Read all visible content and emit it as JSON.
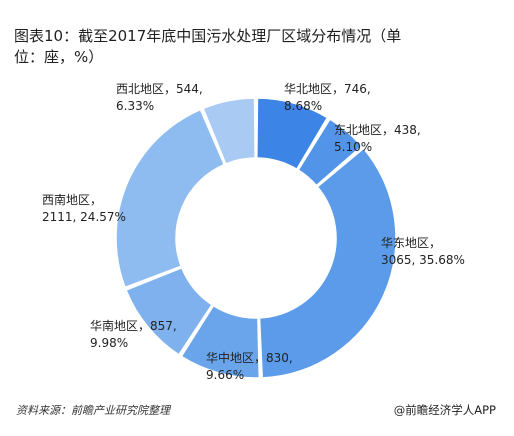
{
  "title": {
    "line1": "图表10：截至2017年底中国污水处理厂区域分布情况（单",
    "line2": "位：座，%）"
  },
  "chart_data": {
    "type": "pie",
    "donut": true,
    "title": "图表10：截至2017年底中国污水处理厂区域分布情况（单位：座，%）",
    "slices": [
      {
        "name": "华北地区",
        "value": 746,
        "percent": "8.68%",
        "label1": "华北地区，746,",
        "label2": "8.68%",
        "color": "#3c84e6"
      },
      {
        "name": "东北地区",
        "value": 438,
        "percent": "5.10%",
        "label1": "东北地区，438,",
        "label2": "5.10%",
        "color": "#5294e8"
      },
      {
        "name": "华东地区",
        "value": 3065,
        "percent": "35.68%",
        "label1": "华东地区，",
        "label2": "3065, 35.68%",
        "color": "#5b9be9"
      },
      {
        "name": "华中地区",
        "value": 830,
        "percent": "9.66%",
        "label1": "华中地区，830,",
        "label2": "9.66%",
        "color": "#6aa5ec"
      },
      {
        "name": "华南地区",
        "value": 857,
        "percent": "9.98%",
        "label1": "华南地区，857,",
        "label2": "9.98%",
        "color": "#7eb1ee"
      },
      {
        "name": "西南地区",
        "value": 2111,
        "percent": "24.57%",
        "label1": "西南地区，",
        "label2": "2111, 24.57%",
        "color": "#8fbcf0"
      },
      {
        "name": "西北地区",
        "value": 544,
        "percent": "6.33%",
        "label1": "西北地区，544,",
        "label2": "6.33%",
        "color": "#a9cbf3"
      }
    ]
  },
  "footer": {
    "source": "资料来源：前瞻产业研究院整理",
    "brand": "@前瞻经济学人APP"
  }
}
